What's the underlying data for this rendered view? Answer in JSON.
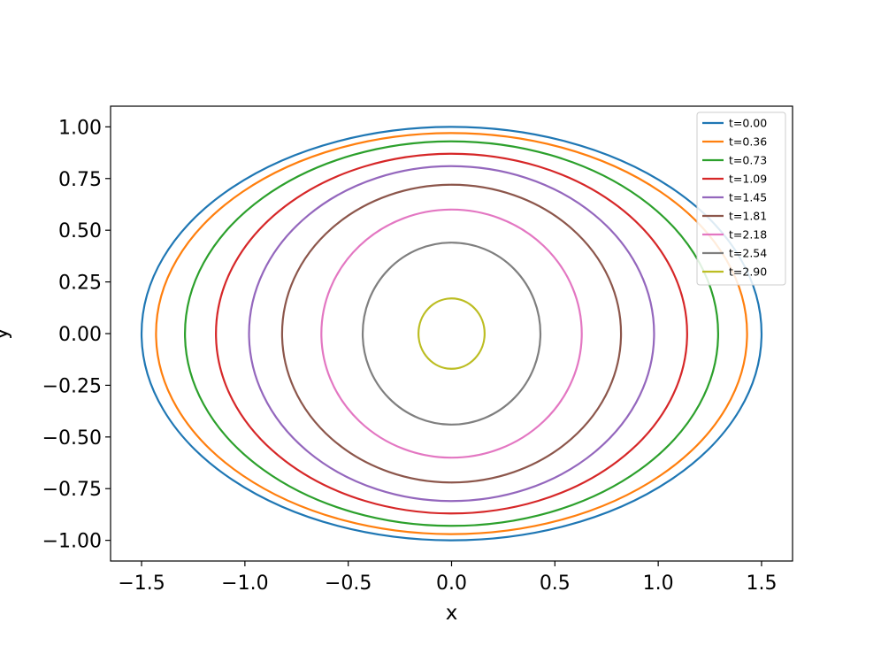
{
  "chart_data": {
    "type": "line",
    "title": "",
    "xlabel": "x",
    "ylabel": "y",
    "xlim": [
      -1.65,
      1.65
    ],
    "ylim": [
      -1.1,
      1.1
    ],
    "xticks": [
      -1.5,
      -1.0,
      -0.5,
      0.0,
      0.5,
      1.0,
      1.5
    ],
    "xtick_labels": [
      "−1.5",
      "−1.0",
      "−0.5",
      "0.0",
      "0.5",
      "1.0",
      "1.5"
    ],
    "yticks": [
      1.0,
      0.75,
      0.5,
      0.25,
      0.0,
      -0.25,
      -0.5,
      -0.75,
      -1.0
    ],
    "ytick_labels": [
      "1.00",
      "0.75",
      "0.50",
      "0.25",
      "0.00",
      "−0.25",
      "−0.50",
      "−0.75",
      "−1.00"
    ],
    "grid": false,
    "legend_position": "top-right",
    "series": [
      {
        "name": "t=0.00",
        "color": "#1f77b4",
        "rx": 1.5,
        "ry": 1.0
      },
      {
        "name": "t=0.36",
        "color": "#ff7f0e",
        "rx": 1.43,
        "ry": 0.97
      },
      {
        "name": "t=0.73",
        "color": "#2ca02c",
        "rx": 1.29,
        "ry": 0.93
      },
      {
        "name": "t=1.09",
        "color": "#d62728",
        "rx": 1.14,
        "ry": 0.87
      },
      {
        "name": "t=1.45",
        "color": "#9467bd",
        "rx": 0.98,
        "ry": 0.81
      },
      {
        "name": "t=1.81",
        "color": "#8c564b",
        "rx": 0.82,
        "ry": 0.72
      },
      {
        "name": "t=2.18",
        "color": "#e377c2",
        "rx": 0.63,
        "ry": 0.6
      },
      {
        "name": "t=2.54",
        "color": "#7f7f7f",
        "rx": 0.43,
        "ry": 0.44
      },
      {
        "name": "t=2.90",
        "color": "#bcbd22",
        "rx": 0.16,
        "ry": 0.17
      }
    ]
  }
}
